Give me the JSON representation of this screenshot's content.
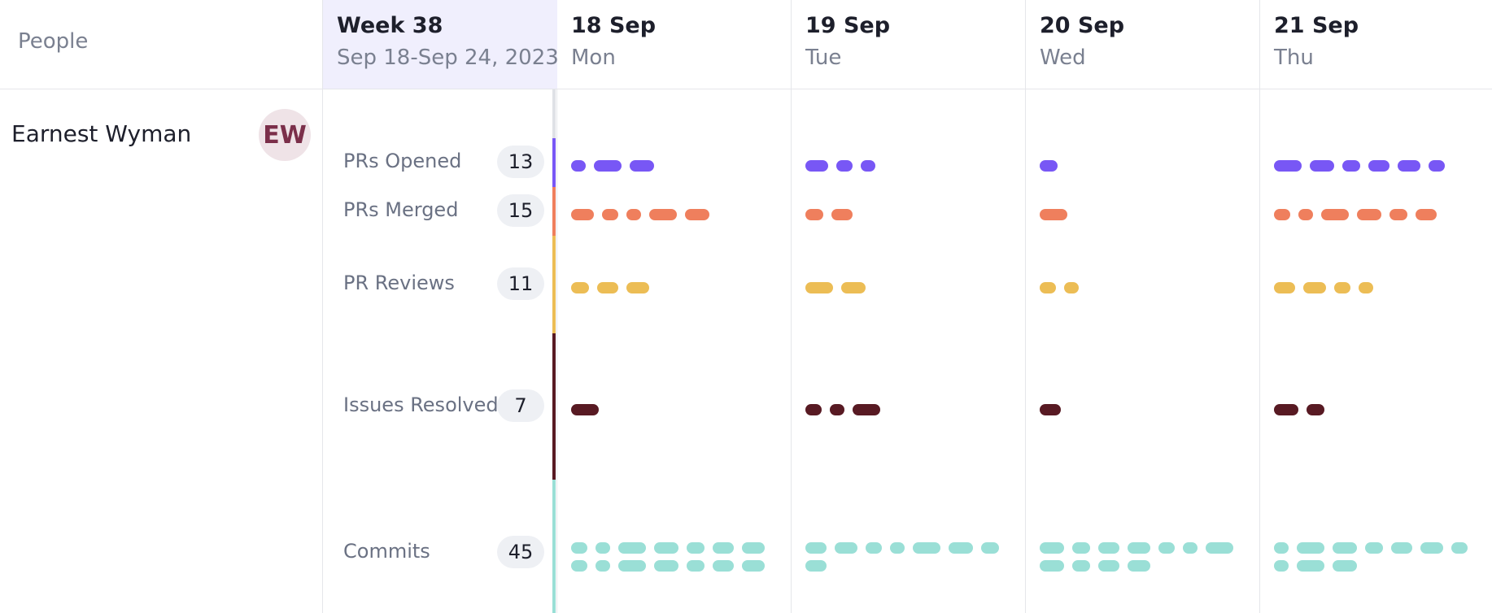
{
  "header": {
    "people_label": "People",
    "week": {
      "title": "Week 38",
      "range": "Sep 18-Sep 24, 2023"
    },
    "days": [
      {
        "date": "18 Sep",
        "weekday": "Mon"
      },
      {
        "date": "19 Sep",
        "weekday": "Tue"
      },
      {
        "date": "20 Sep",
        "weekday": "Wed"
      },
      {
        "date": "21 Sep",
        "weekday": "Thu"
      }
    ]
  },
  "person": {
    "name": "Earnest Wyman",
    "initials": "EW"
  },
  "metrics": [
    {
      "label": "PRs Opened",
      "count": "13",
      "color": "#7857f5",
      "per_day": [
        3,
        3,
        1,
        6
      ]
    },
    {
      "label": "PRs Merged",
      "count": "15",
      "color": "#ef7f5d",
      "per_day": [
        5,
        2,
        1,
        6
      ]
    },
    {
      "label": "PR Reviews",
      "count": "11",
      "color": "#ecbd55",
      "per_day": [
        3,
        2,
        2,
        4
      ]
    },
    {
      "label": "Issues Resolved",
      "count": "7",
      "color": "#581a23",
      "per_day": [
        1,
        3,
        1,
        2
      ]
    },
    {
      "label": "Commits",
      "count": "45",
      "color": "#9adfd6",
      "per_day": [
        14,
        8,
        11,
        10
      ]
    }
  ]
}
